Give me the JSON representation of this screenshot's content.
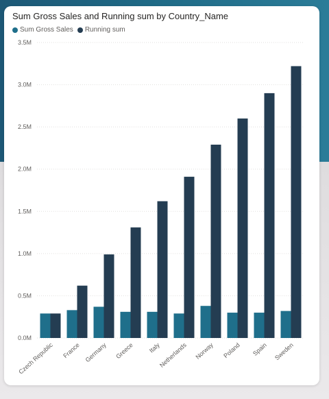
{
  "chart_data": {
    "type": "bar",
    "title": "Sum Gross Sales and Running sum by Country_Name",
    "xlabel": "",
    "ylabel": "",
    "categories": [
      "Czech Republic",
      "France",
      "Germany",
      "Greece",
      "Italy",
      "Netherlands",
      "Norway",
      "Poland",
      "Spain",
      "Sweden"
    ],
    "series": [
      {
        "name": "Sum Gross Sales",
        "color": "#1f6f8b",
        "values": [
          0.29,
          0.33,
          0.37,
          0.31,
          0.31,
          0.29,
          0.38,
          0.3,
          0.3,
          0.32
        ]
      },
      {
        "name": "Running sum",
        "color": "#243d52",
        "values": [
          0.29,
          0.62,
          0.99,
          1.31,
          1.62,
          1.91,
          2.29,
          2.6,
          2.9,
          3.22
        ]
      }
    ],
    "value_unit": "M",
    "ylim": [
      0,
      3.5
    ],
    "yticks": [
      {
        "value": 0,
        "label": "0.0M"
      },
      {
        "value": 0.5,
        "label": "0.5M"
      },
      {
        "value": 1.0,
        "label": "1.0M"
      },
      {
        "value": 1.5,
        "label": "1.5M"
      },
      {
        "value": 2.0,
        "label": "2.0M"
      },
      {
        "value": 2.5,
        "label": "2.5M"
      },
      {
        "value": 3.0,
        "label": "3.0M"
      },
      {
        "value": 3.5,
        "label": "3.5M"
      }
    ],
    "grid": true,
    "legend_position": "top-left"
  }
}
